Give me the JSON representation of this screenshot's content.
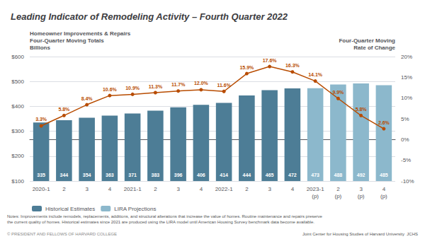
{
  "chart_data": {
    "type": "bar",
    "title": "Leading Indicator of Remodeling Activity – Fourth Quarter 2022",
    "ylabel": "Homeowner Improvements & Repairs\nFour-Quarter Moving Totals\nBillions",
    "y2label": "Four-Quarter Moving\nRate of Change",
    "categories": [
      "2020-1",
      "2",
      "3",
      "4",
      "2021-1",
      "2",
      "3",
      "4",
      "2022-1",
      "2",
      "3",
      "4",
      "2023-1\n(p)",
      "2\n(p)",
      "3\n(p)",
      "4\n(p)"
    ],
    "series": [
      {
        "name": "Historical Estimates",
        "type": "bar",
        "color": "#4d7d96",
        "values": [
          335,
          344,
          354,
          363,
          371,
          383,
          396,
          406,
          414,
          444,
          465,
          472,
          null,
          null,
          null,
          null
        ]
      },
      {
        "name": "LIRA Projections",
        "type": "bar",
        "color": "#8cb8cc",
        "values": [
          null,
          null,
          null,
          null,
          null,
          null,
          null,
          null,
          null,
          null,
          null,
          null,
          473,
          488,
          492,
          485
        ]
      },
      {
        "type": "line",
        "axis": "y2",
        "color": "#b84c00",
        "marker": "circle",
        "values": [
          3.3,
          5.8,
          8.4,
          10.6,
          10.9,
          11.3,
          11.7,
          12.0,
          11.6,
          15.9,
          17.6,
          16.3,
          14.1,
          9.9,
          5.8,
          2.6
        ],
        "value_labels": [
          "3.3%",
          "5.8%",
          "8.4%",
          "10.6%",
          "10.9%",
          "11.3%",
          "11.7%",
          "12.0%",
          "11.6%",
          "15.9%",
          "17.6%",
          "16.3%",
          "14.1%",
          "9.9%",
          "5.8%",
          "2.6%"
        ]
      }
    ],
    "ylim": [
      100,
      600
    ],
    "yticks": [
      {
        "value": 100,
        "label": "$100"
      },
      {
        "value": 200,
        "label": "$200"
      },
      {
        "value": 300,
        "label": "$300"
      },
      {
        "value": 400,
        "label": "$400"
      },
      {
        "value": 500,
        "label": "$500"
      },
      {
        "value": 600,
        "label": "$600"
      }
    ],
    "y2lim": [
      -10,
      20
    ],
    "y2ticks": [
      {
        "value": -10,
        "label": "-10%"
      },
      {
        "value": -5,
        "label": "-5%"
      },
      {
        "value": 0,
        "label": "0%"
      },
      {
        "value": 5,
        "label": "5%"
      },
      {
        "value": 10,
        "label": "10%"
      },
      {
        "value": 15,
        "label": "15%"
      },
      {
        "value": 20,
        "label": "20%"
      }
    ],
    "grid": true,
    "data_labels": true,
    "legend": "bottom",
    "annotations": [
      "Notes: Improvements include remodels, replacements, additions, and structural alterations that increase the value of homes. Routine maintenance and repairs preserve\nthe current quality of homes. Historical estimates since 2021 are produced using the LIRA model until American Housing Survey benchmark data become available.",
      "© PRESIDENT AND FELLOWS OF HARVARD COLLEGE",
      "Joint Center for Housing Studies of Harvard University  JCHS"
    ]
  }
}
